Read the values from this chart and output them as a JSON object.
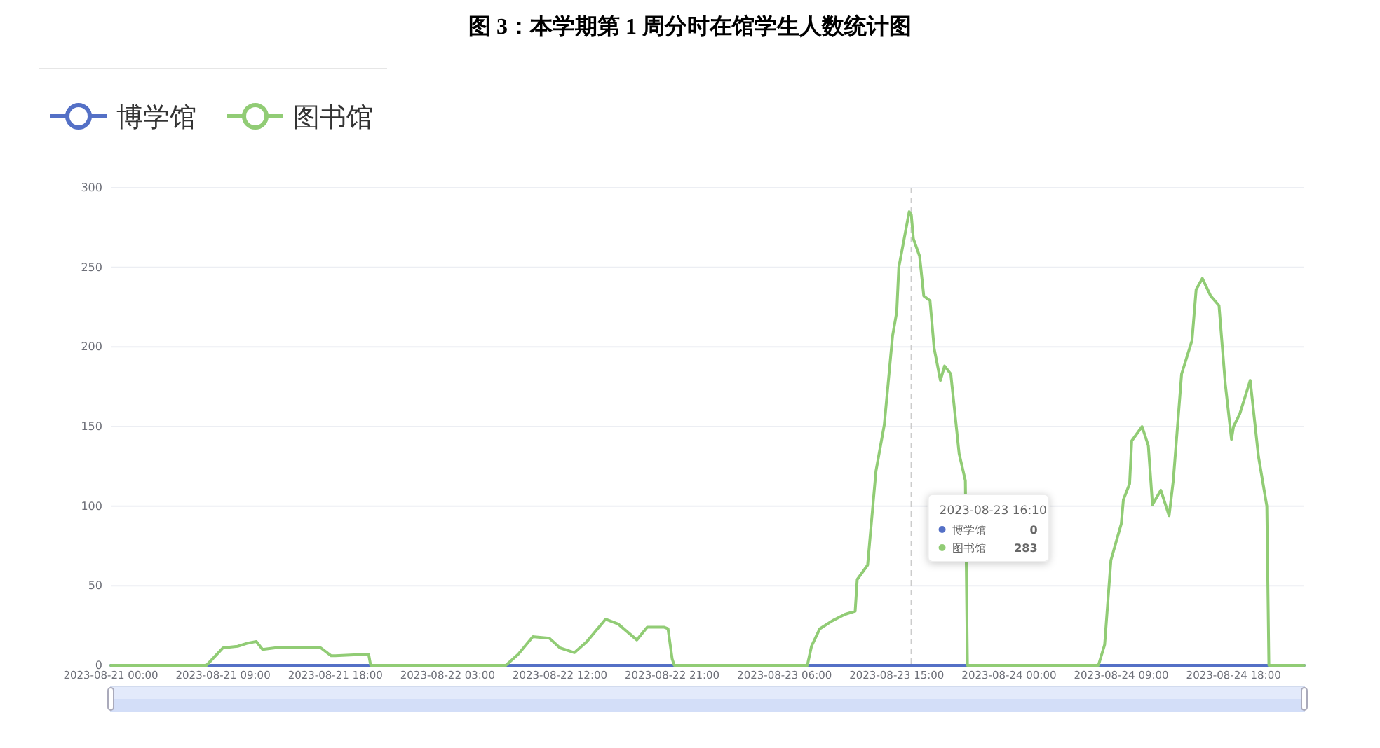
{
  "chart_data": {
    "type": "line",
    "title": "图 3：本学期第 1 周分时在馆学生人数统计图",
    "xlim": [
      "2023-08-21T00:00",
      "2023-08-24T23:40"
    ],
    "xticks": [
      {
        "value": "2023-08-21T00:00",
        "label": "2023-08-21 00:00"
      },
      {
        "value": "2023-08-21T09:00",
        "label": "2023-08-21 09:00"
      },
      {
        "value": "2023-08-21T18:00",
        "label": "2023-08-21 18:00"
      },
      {
        "value": "2023-08-22T03:00",
        "label": "2023-08-22 03:00"
      },
      {
        "value": "2023-08-22T12:00",
        "label": "2023-08-22 12:00"
      },
      {
        "value": "2023-08-22T21:00",
        "label": "2023-08-22 21:00"
      },
      {
        "value": "2023-08-23T06:00",
        "label": "2023-08-23 06:00"
      },
      {
        "value": "2023-08-23T15:00",
        "label": "2023-08-23 15:00"
      },
      {
        "value": "2023-08-24T00:00",
        "label": "2023-08-24 00:00"
      },
      {
        "value": "2023-08-24T09:00",
        "label": "2023-08-24 09:00"
      },
      {
        "value": "2023-08-24T18:00",
        "label": "2023-08-24 18:00"
      }
    ],
    "ylim": [
      0,
      300
    ],
    "yticks": [
      0,
      50,
      100,
      150,
      200,
      250,
      300
    ],
    "grid": "y",
    "legend": "top left",
    "line_style": "solid",
    "ref_lines": [
      {
        "axis": "x",
        "value": "2023-08-23T16:10",
        "color": "#cccccc",
        "line_style": "dashed"
      }
    ],
    "annotations": [
      "2023-08-23 16:10",
      "博学馆",
      "0",
      "图书馆",
      "283"
    ],
    "series": [
      {
        "name": "博学馆",
        "color": "#5470c6",
        "x": [
          "2023-08-21T00:00",
          "2023-08-21T09:00",
          "2023-08-21T18:00",
          "2023-08-22T03:00",
          "2023-08-22T12:00",
          "2023-08-22T21:00",
          "2023-08-23T06:00",
          "2023-08-23T15:00",
          "2023-08-23T16:10",
          "2023-08-24T00:00",
          "2023-08-24T09:00",
          "2023-08-24T18:00",
          "2023-08-24T23:40"
        ],
        "values": [
          0,
          0,
          0,
          0,
          0,
          0,
          0,
          0,
          0,
          0,
          0,
          0,
          0
        ]
      },
      {
        "name": "图书馆",
        "color": "#91cc75",
        "x": [
          "2023-08-21T00:00",
          "2023-08-21T07:40",
          "2023-08-21T09:00",
          "2023-08-21T10:10",
          "2023-08-21T11:00",
          "2023-08-21T11:40",
          "2023-08-21T12:10",
          "2023-08-21T13:10",
          "2023-08-21T15:10",
          "2023-08-21T16:50",
          "2023-08-21T17:40",
          "2023-08-21T18:00",
          "2023-08-21T20:40",
          "2023-08-21T20:50",
          "2023-08-22T03:00",
          "2023-08-22T07:40",
          "2023-08-22T08:40",
          "2023-08-22T09:50",
          "2023-08-22T11:10",
          "2023-08-22T12:00",
          "2023-08-22T13:10",
          "2023-08-22T14:10",
          "2023-08-22T15:40",
          "2023-08-22T16:40",
          "2023-08-22T18:10",
          "2023-08-22T19:00",
          "2023-08-22T20:20",
          "2023-08-22T20:40",
          "2023-08-22T21:00",
          "2023-08-22T21:10",
          "2023-08-23T06:00",
          "2023-08-23T07:50",
          "2023-08-23T08:10",
          "2023-08-23T08:50",
          "2023-08-23T09:50",
          "2023-08-23T10:50",
          "2023-08-23T11:40",
          "2023-08-23T11:50",
          "2023-08-23T12:40",
          "2023-08-23T13:20",
          "2023-08-23T14:00",
          "2023-08-23T14:40",
          "2023-08-23T15:00",
          "2023-08-23T15:10",
          "2023-08-23T16:00",
          "2023-08-23T16:10",
          "2023-08-23T16:20",
          "2023-08-23T16:50",
          "2023-08-23T17:10",
          "2023-08-23T17:40",
          "2023-08-23T18:00",
          "2023-08-23T18:30",
          "2023-08-23T18:50",
          "2023-08-23T19:20",
          "2023-08-23T20:00",
          "2023-08-23T20:30",
          "2023-08-23T20:40",
          "2023-08-24T00:00",
          "2023-08-24T07:10",
          "2023-08-24T07:40",
          "2023-08-24T08:10",
          "2023-08-24T09:00",
          "2023-08-24T09:10",
          "2023-08-24T09:40",
          "2023-08-24T09:50",
          "2023-08-24T10:40",
          "2023-08-24T11:10",
          "2023-08-24T11:30",
          "2023-08-24T12:10",
          "2023-08-24T12:50",
          "2023-08-24T13:10",
          "2023-08-24T13:50",
          "2023-08-24T14:40",
          "2023-08-24T15:00",
          "2023-08-24T15:30",
          "2023-08-24T16:10",
          "2023-08-24T16:50",
          "2023-08-24T17:20",
          "2023-08-24T17:50",
          "2023-08-24T18:00",
          "2023-08-24T18:30",
          "2023-08-24T19:20",
          "2023-08-24T20:00",
          "2023-08-24T20:40",
          "2023-08-24T20:50",
          "2023-08-24T23:40"
        ],
        "values": [
          0,
          0,
          11,
          12,
          14,
          15,
          10,
          11,
          11,
          11,
          6,
          6,
          7,
          0,
          0,
          0,
          7,
          18,
          17,
          11,
          8,
          15,
          29,
          26,
          16,
          24,
          24,
          23,
          4,
          0,
          0,
          0,
          12,
          23,
          28,
          32,
          34,
          54,
          63,
          122,
          151,
          207,
          222,
          250,
          285,
          283,
          268,
          257,
          232,
          229,
          199,
          179,
          188,
          183,
          133,
          116,
          0,
          0,
          0,
          13,
          66,
          89,
          104,
          114,
          141,
          150,
          138,
          101,
          110,
          94,
          116,
          183,
          204,
          236,
          243,
          232,
          226,
          177,
          142,
          150,
          158,
          179,
          131,
          100,
          0,
          0
        ]
      }
    ]
  }
}
